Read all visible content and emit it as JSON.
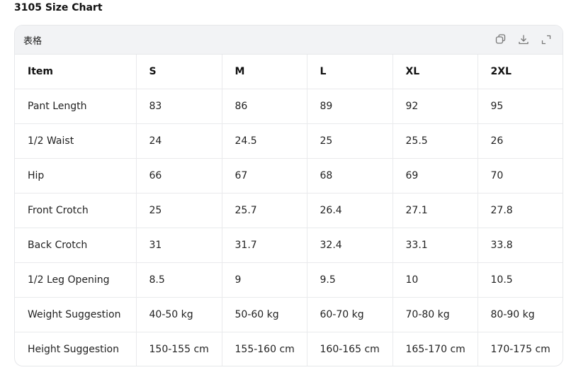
{
  "title": "3105 Size Chart",
  "table_label": "表格",
  "toolbar": {
    "icons": [
      "copy-icon",
      "download-icon",
      "expand-icon"
    ]
  },
  "headers": [
    "Item",
    "S",
    "M",
    "L",
    "XL",
    "2XL"
  ],
  "rows": [
    [
      "Pant Length",
      "83",
      "86",
      "89",
      "92",
      "95"
    ],
    [
      "1/2 Waist",
      "24",
      "24.5",
      "25",
      "25.5",
      "26"
    ],
    [
      "Hip",
      "66",
      "67",
      "68",
      "69",
      "70"
    ],
    [
      "Front Crotch",
      "25",
      "25.7",
      "26.4",
      "27.1",
      "27.8"
    ],
    [
      "Back Crotch",
      "31",
      "31.7",
      "32.4",
      "33.1",
      "33.8"
    ],
    [
      "1/2 Leg Opening",
      "8.5",
      "9",
      "9.5",
      "10",
      "10.5"
    ],
    [
      "Weight Suggestion",
      "40-50 kg",
      "50-60 kg",
      "60-70 kg",
      "70-80 kg",
      "80-90 kg"
    ],
    [
      "Height Suggestion",
      "150-155 cm",
      "155-160 cm",
      "160-165 cm",
      "165-170 cm",
      "170-175 cm"
    ]
  ]
}
